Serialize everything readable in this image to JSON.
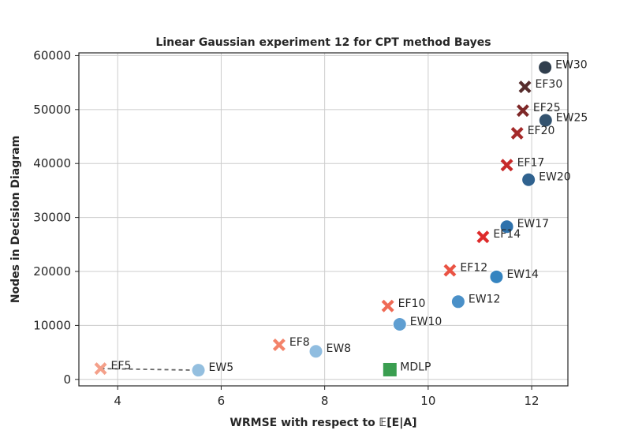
{
  "chart_data": {
    "type": "scatter",
    "title": "Linear Gaussian experiment 12 for CPT method Bayes",
    "xlabel": "WRMSE with respect to 𝔼[E|A]",
    "ylabel": "Nodes in Decision Diagram",
    "xlim": [
      3.25,
      12.7
    ],
    "ylim": [
      -1200,
      60500
    ],
    "xticks": [
      {
        "value": 4,
        "label": "4"
      },
      {
        "value": 6,
        "label": "6"
      },
      {
        "value": 8,
        "label": "8"
      },
      {
        "value": 10,
        "label": "10"
      },
      {
        "value": 12,
        "label": "12"
      }
    ],
    "yticks": [
      {
        "value": 0,
        "label": "0"
      },
      {
        "value": 10000,
        "label": "10000"
      },
      {
        "value": 20000,
        "label": "20000"
      },
      {
        "value": 30000,
        "label": "30000"
      },
      {
        "value": 40000,
        "label": "40000"
      },
      {
        "value": 50000,
        "label": "50000"
      },
      {
        "value": 60000,
        "label": "60000"
      }
    ],
    "grid": true,
    "connector": {
      "from": "EF5",
      "to": "EW5",
      "style": "dashed",
      "color": "#666666"
    },
    "points": [
      {
        "label": "EW5",
        "x": 5.56,
        "y": 1700,
        "marker": "circle",
        "color": "#94bfdf"
      },
      {
        "label": "EW8",
        "x": 7.83,
        "y": 5200,
        "marker": "circle",
        "color": "#90bde0"
      },
      {
        "label": "EW10",
        "x": 9.45,
        "y": 10200,
        "marker": "circle",
        "color": "#5f9ed1"
      },
      {
        "label": "EW12",
        "x": 10.58,
        "y": 14400,
        "marker": "circle",
        "color": "#4a90c8"
      },
      {
        "label": "EW14",
        "x": 11.32,
        "y": 19000,
        "marker": "circle",
        "color": "#3584c0"
      },
      {
        "label": "EW17",
        "x": 11.52,
        "y": 28300,
        "marker": "circle",
        "color": "#2f72ac"
      },
      {
        "label": "EW20",
        "x": 11.94,
        "y": 37000,
        "marker": "circle",
        "color": "#30628f"
      },
      {
        "label": "EW25",
        "x": 12.27,
        "y": 48000,
        "marker": "circle",
        "color": "#34536f"
      },
      {
        "label": "EW30",
        "x": 12.26,
        "y": 57800,
        "marker": "circle",
        "color": "#303e4d"
      },
      {
        "label": "EF5",
        "x": 3.67,
        "y": 2000,
        "marker": "x",
        "color": "#f4a08a"
      },
      {
        "label": "EF8",
        "x": 7.12,
        "y": 6400,
        "marker": "x",
        "color": "#f3836a"
      },
      {
        "label": "EF10",
        "x": 9.22,
        "y": 13600,
        "marker": "x",
        "color": "#ef6a55"
      },
      {
        "label": "EF12",
        "x": 10.42,
        "y": 20200,
        "marker": "x",
        "color": "#ea5344"
      },
      {
        "label": "EF14",
        "x": 11.06,
        "y": 26400,
        "marker": "x",
        "color": "#de2b2b"
      },
      {
        "label": "EF17",
        "x": 11.52,
        "y": 39700,
        "marker": "x",
        "color": "#c72828"
      },
      {
        "label": "EF20",
        "x": 11.72,
        "y": 45600,
        "marker": "x",
        "color": "#a52a2a"
      },
      {
        "label": "EF25",
        "x": 11.83,
        "y": 49800,
        "marker": "x",
        "color": "#7e2828"
      },
      {
        "label": "EF30",
        "x": 11.87,
        "y": 54200,
        "marker": "x",
        "color": "#562c2c"
      },
      {
        "label": "MDLP",
        "x": 9.26,
        "y": 1800,
        "marker": "square",
        "color": "#3a9e50"
      }
    ]
  }
}
